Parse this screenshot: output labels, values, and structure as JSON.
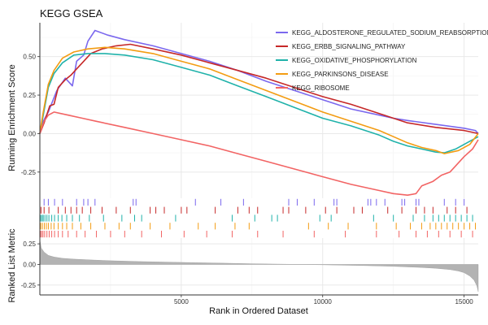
{
  "chart_data": {
    "type": "line",
    "title": "KEGG GSEA",
    "xlabel": "Rank in Ordered Dataset",
    "ylabel_top": "Running Enrichment Score",
    "ylabel_bottom": "Ranked List Metric",
    "xlim": [
      0,
      15500
    ],
    "ylim_top": [
      -0.42,
      0.72
    ],
    "ylim_bottom": [
      -0.37,
      0.32
    ],
    "x_ticks": [
      5000,
      10000,
      15000
    ],
    "x_tick_labels": [
      "5000",
      "10000",
      "15000"
    ],
    "y_ticks_top": [
      -0.25,
      0.0,
      0.25,
      0.5
    ],
    "y_tick_labels_top": [
      "-0.25",
      "0.00",
      "0.25",
      "0.50"
    ],
    "y_ticks_bottom": [
      -0.25,
      0.0,
      0.25
    ],
    "y_tick_labels_bottom": [
      "-0.25",
      "0.00",
      "0.25"
    ],
    "grid": true,
    "legend_position": "top-right",
    "series": [
      {
        "name": "KEGG_ALDOSTERONE_REGULATED_SODIUM_REABSORPTION",
        "color": "#7B68EE",
        "points": [
          [
            0,
            0.0
          ],
          [
            120,
            0.08
          ],
          [
            300,
            0.14
          ],
          [
            600,
            0.28
          ],
          [
            900,
            0.36
          ],
          [
            1150,
            0.31
          ],
          [
            1300,
            0.47
          ],
          [
            1550,
            0.51
          ],
          [
            1700,
            0.6
          ],
          [
            1950,
            0.67
          ],
          [
            2400,
            0.64
          ],
          [
            3000,
            0.61
          ],
          [
            4000,
            0.57
          ],
          [
            5000,
            0.52
          ],
          [
            6000,
            0.47
          ],
          [
            7000,
            0.41
          ],
          [
            8000,
            0.34
          ],
          [
            9000,
            0.28
          ],
          [
            10000,
            0.22
          ],
          [
            11000,
            0.16
          ],
          [
            12000,
            0.12
          ],
          [
            12500,
            0.1
          ],
          [
            13000,
            0.085
          ],
          [
            14000,
            0.06
          ],
          [
            15000,
            0.035
          ],
          [
            15400,
            0.02
          ],
          [
            15500,
            0.0
          ]
        ]
      },
      {
        "name": "KEGG_ERBB_SIGNALING_PATHWAY",
        "color": "#C62828",
        "points": [
          [
            0,
            0.0
          ],
          [
            150,
            0.07
          ],
          [
            350,
            0.18
          ],
          [
            500,
            0.19
          ],
          [
            650,
            0.3
          ],
          [
            900,
            0.35
          ],
          [
            1100,
            0.38
          ],
          [
            1300,
            0.42
          ],
          [
            1500,
            0.46
          ],
          [
            1800,
            0.52
          ],
          [
            2200,
            0.55
          ],
          [
            2700,
            0.57
          ],
          [
            3200,
            0.58
          ],
          [
            4000,
            0.55
          ],
          [
            5000,
            0.51
          ],
          [
            6000,
            0.46
          ],
          [
            7000,
            0.41
          ],
          [
            8000,
            0.36
          ],
          [
            9000,
            0.3
          ],
          [
            10000,
            0.24
          ],
          [
            11000,
            0.19
          ],
          [
            12000,
            0.13
          ],
          [
            13000,
            0.07
          ],
          [
            14000,
            0.04
          ],
          [
            15000,
            0.02
          ],
          [
            15500,
            0.0
          ]
        ]
      },
      {
        "name": "KEGG_OXIDATIVE_PHOSPHORYLATION",
        "color": "#20B2AA",
        "points": [
          [
            0,
            0.0
          ],
          [
            100,
            0.1
          ],
          [
            300,
            0.3
          ],
          [
            500,
            0.39
          ],
          [
            800,
            0.46
          ],
          [
            1200,
            0.51
          ],
          [
            1700,
            0.52
          ],
          [
            2300,
            0.52
          ],
          [
            3000,
            0.51
          ],
          [
            4000,
            0.48
          ],
          [
            5000,
            0.43
          ],
          [
            6000,
            0.38
          ],
          [
            7000,
            0.31
          ],
          [
            8000,
            0.24
          ],
          [
            9000,
            0.17
          ],
          [
            10000,
            0.1
          ],
          [
            11000,
            0.05
          ],
          [
            12000,
            -0.01
          ],
          [
            12500,
            -0.05
          ],
          [
            13000,
            -0.08
          ],
          [
            13500,
            -0.1
          ],
          [
            14000,
            -0.12
          ],
          [
            14300,
            -0.125
          ],
          [
            14700,
            -0.1
          ],
          [
            15100,
            -0.06
          ],
          [
            15500,
            -0.02
          ]
        ]
      },
      {
        "name": "KEGG_PARKINSONS_DISEASE",
        "color": "#F39C12",
        "points": [
          [
            0,
            0.0
          ],
          [
            100,
            0.12
          ],
          [
            300,
            0.32
          ],
          [
            500,
            0.41
          ],
          [
            800,
            0.49
          ],
          [
            1200,
            0.53
          ],
          [
            1700,
            0.55
          ],
          [
            2300,
            0.56
          ],
          [
            3000,
            0.55
          ],
          [
            4000,
            0.52
          ],
          [
            5000,
            0.47
          ],
          [
            6000,
            0.42
          ],
          [
            7000,
            0.35
          ],
          [
            8000,
            0.28
          ],
          [
            9000,
            0.21
          ],
          [
            10000,
            0.14
          ],
          [
            11000,
            0.08
          ],
          [
            12000,
            0.02
          ],
          [
            12500,
            -0.02
          ],
          [
            13000,
            -0.06
          ],
          [
            13500,
            -0.09
          ],
          [
            14000,
            -0.11
          ],
          [
            14300,
            -0.13
          ],
          [
            14800,
            -0.11
          ],
          [
            15200,
            -0.07
          ],
          [
            15500,
            0.0
          ]
        ]
      },
      {
        "name": "KEGG_RIBOSOME",
        "color": "#F26464",
        "points": [
          [
            0,
            0.0
          ],
          [
            150,
            0.08
          ],
          [
            300,
            0.12
          ],
          [
            500,
            0.14
          ],
          [
            1000,
            0.12
          ],
          [
            1500,
            0.1
          ],
          [
            2000,
            0.08
          ],
          [
            3000,
            0.04
          ],
          [
            4000,
            0.0
          ],
          [
            5000,
            -0.04
          ],
          [
            6000,
            -0.08
          ],
          [
            7000,
            -0.13
          ],
          [
            8000,
            -0.18
          ],
          [
            9000,
            -0.23
          ],
          [
            10000,
            -0.28
          ],
          [
            11000,
            -0.33
          ],
          [
            12000,
            -0.37
          ],
          [
            12500,
            -0.39
          ],
          [
            13000,
            -0.4
          ],
          [
            13300,
            -0.39
          ],
          [
            13500,
            -0.34
          ],
          [
            13900,
            -0.31
          ],
          [
            14200,
            -0.27
          ],
          [
            14500,
            -0.25
          ],
          [
            14700,
            -0.21
          ],
          [
            15000,
            -0.15
          ],
          [
            15300,
            -0.1
          ],
          [
            15500,
            -0.04
          ]
        ]
      }
    ],
    "hits": [
      [
        150,
        300,
        520,
        800,
        1300,
        1550,
        1700,
        1950,
        3300,
        3400,
        5500,
        6400,
        7200,
        8800,
        9100,
        9700,
        10400,
        10500,
        11600,
        11700,
        11900,
        12200,
        12800,
        12900,
        13300,
        13400,
        14300,
        14700,
        15000
      ],
      [
        40,
        150,
        320,
        650,
        900,
        1100,
        1300,
        1500,
        1800,
        2200,
        2700,
        3200,
        3900,
        4100,
        4400,
        5000,
        5200,
        6200,
        7000,
        7400,
        7700,
        8600,
        8800,
        9400,
        10100,
        10500,
        11100,
        11400,
        12300,
        12800,
        13300,
        13600,
        13900,
        14400,
        14700,
        15100
      ],
      [
        30,
        80,
        120,
        180,
        250,
        320,
        420,
        520,
        650,
        780,
        950,
        1150,
        1400,
        1750,
        2250,
        2900,
        3350,
        3600,
        4800,
        6800,
        7600,
        8200,
        8400,
        9900,
        10300,
        11800,
        12500,
        13200,
        13600,
        13900,
        14100,
        14300,
        14500,
        14700,
        14900,
        15100,
        15300
      ],
      [
        30,
        90,
        160,
        230,
        300,
        400,
        500,
        650,
        800,
        950,
        1150,
        1450,
        1800,
        2300,
        2800,
        3200,
        3900,
        4600,
        5600,
        6200,
        6900,
        7400,
        9500,
        10200,
        10900,
        11900,
        12600,
        13100,
        13500,
        13800,
        14000,
        14200,
        14400,
        14600,
        14800,
        15000,
        15200,
        15400
      ],
      [
        20,
        60,
        110,
        170,
        250,
        330,
        420,
        520,
        650,
        800,
        1000,
        1300,
        1600,
        2000,
        2500,
        3000,
        3600,
        4300,
        5100,
        5900,
        6800,
        7700,
        8600,
        9700,
        10800,
        11900,
        12700,
        13300,
        13700,
        14100,
        14500,
        14900,
        15300
      ]
    ],
    "ranked_metric": {
      "x": [
        0,
        50,
        150,
        300,
        500,
        800,
        1200,
        1800,
        2500,
        3500,
        4500,
        5500,
        6500,
        7500,
        8500,
        9500,
        10500,
        11500,
        12500,
        13500,
        14000,
        14500,
        14800,
        15000,
        15200,
        15350,
        15450,
        15500
      ],
      "y": [
        0.3,
        0.2,
        0.15,
        0.11,
        0.09,
        0.075,
        0.065,
        0.055,
        0.045,
        0.035,
        0.028,
        0.021,
        0.015,
        0.009,
        0.004,
        -0.001,
        -0.007,
        -0.014,
        -0.023,
        -0.037,
        -0.047,
        -0.062,
        -0.08,
        -0.1,
        -0.14,
        -0.19,
        -0.26,
        -0.33
      ]
    }
  }
}
